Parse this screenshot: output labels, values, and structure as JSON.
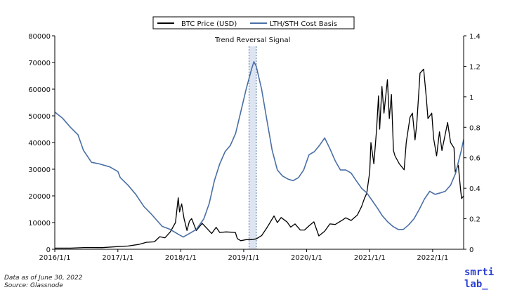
{
  "colors": {
    "btc": "#000000",
    "basis": "#4a6fa5",
    "signal_fill": "#c7d3ea",
    "signal_line": "#4a6fa5"
  },
  "footnote": {
    "date_line": "Data as of June 30, 2022",
    "source_line": "Source: Glassnode"
  },
  "logo": {
    "line1": "smrti",
    "line2": "lab_"
  },
  "chart_data": {
    "type": "line",
    "title": "",
    "xlabel": "",
    "ylabel": "",
    "x_ticks": [
      "2016/1/1",
      "2017/1/1",
      "2018/1/1",
      "2019/1/1",
      "2020/1/1",
      "2021/1/1",
      "2022/1/1"
    ],
    "x_range": [
      "2016-01-01",
      "2022-06-30"
    ],
    "ylim_left": [
      0,
      80000
    ],
    "yticks_left": [
      "0",
      "10000",
      "20000",
      "30000",
      "40000",
      "50000",
      "60000",
      "70000",
      "80000"
    ],
    "ylim_right": [
      0,
      1.4
    ],
    "yticks_right": [
      "0",
      "0.2",
      "0.4",
      "0.6",
      "0.8",
      "1",
      "1.2",
      "1.4"
    ],
    "grid": false,
    "legend_position": "top-center",
    "annotation": {
      "text": "Trend Reversal Signal",
      "x_start": "2019-02-01",
      "x_end": "2019-03-15"
    },
    "series": [
      {
        "name": "BTC Price (USD)",
        "axis": "left",
        "points": [
          [
            "2016-01-01",
            430
          ],
          [
            "2016-04-01",
            420
          ],
          [
            "2016-07-01",
            670
          ],
          [
            "2016-10-01",
            610
          ],
          [
            "2017-01-01",
            1000
          ],
          [
            "2017-03-01",
            1200
          ],
          [
            "2017-05-01",
            1800
          ],
          [
            "2017-06-15",
            2600
          ],
          [
            "2017-08-01",
            2800
          ],
          [
            "2017-09-01",
            4700
          ],
          [
            "2017-10-01",
            4300
          ],
          [
            "2017-11-01",
            6500
          ],
          [
            "2017-12-01",
            10000
          ],
          [
            "2017-12-17",
            19300
          ],
          [
            "2017-12-25",
            14000
          ],
          [
            "2018-01-06",
            17000
          ],
          [
            "2018-01-20",
            11500
          ],
          [
            "2018-02-06",
            7000
          ],
          [
            "2018-02-20",
            10500
          ],
          [
            "2018-03-05",
            11500
          ],
          [
            "2018-04-01",
            7000
          ],
          [
            "2018-05-05",
            9700
          ],
          [
            "2018-06-29",
            5900
          ],
          [
            "2018-07-25",
            8200
          ],
          [
            "2018-08-15",
            6300
          ],
          [
            "2018-09-20",
            6500
          ],
          [
            "2018-10-20",
            6400
          ],
          [
            "2018-11-14",
            6300
          ],
          [
            "2018-11-25",
            4000
          ],
          [
            "2018-12-15",
            3200
          ],
          [
            "2019-01-15",
            3600
          ],
          [
            "2019-02-15",
            3600
          ],
          [
            "2019-03-15",
            3900
          ],
          [
            "2019-04-15",
            5100
          ],
          [
            "2019-05-15",
            8000
          ],
          [
            "2019-06-26",
            12500
          ],
          [
            "2019-07-15",
            10000
          ],
          [
            "2019-08-06",
            11900
          ],
          [
            "2019-09-10",
            10200
          ],
          [
            "2019-10-01",
            8300
          ],
          [
            "2019-10-26",
            9500
          ],
          [
            "2019-11-25",
            7200
          ],
          [
            "2019-12-20",
            7200
          ],
          [
            "2020-01-15",
            8800
          ],
          [
            "2020-02-12",
            10300
          ],
          [
            "2020-03-12",
            5000
          ],
          [
            "2020-04-15",
            6800
          ],
          [
            "2020-05-15",
            9500
          ],
          [
            "2020-06-15",
            9300
          ],
          [
            "2020-07-28",
            11000
          ],
          [
            "2020-08-15",
            11800
          ],
          [
            "2020-09-15",
            10800
          ],
          [
            "2020-10-21",
            12800
          ],
          [
            "2020-11-15",
            16000
          ],
          [
            "2020-12-01",
            19000
          ],
          [
            "2020-12-15",
            21000
          ],
          [
            "2021-01-01",
            29000
          ],
          [
            "2021-01-08",
            40000
          ],
          [
            "2021-01-25",
            32000
          ],
          [
            "2021-02-10",
            45000
          ],
          [
            "2021-02-21",
            57500
          ],
          [
            "2021-02-28",
            45000
          ],
          [
            "2021-03-13",
            61000
          ],
          [
            "2021-03-25",
            51000
          ],
          [
            "2021-04-14",
            63500
          ],
          [
            "2021-04-25",
            49000
          ],
          [
            "2021-05-07",
            58000
          ],
          [
            "2021-05-19",
            37000
          ],
          [
            "2021-05-28",
            35000
          ],
          [
            "2021-06-22",
            32000
          ],
          [
            "2021-07-20",
            29800
          ],
          [
            "2021-08-01",
            40000
          ],
          [
            "2021-08-23",
            49500
          ],
          [
            "2021-09-06",
            51000
          ],
          [
            "2021-09-21",
            41000
          ],
          [
            "2021-10-01",
            47000
          ],
          [
            "2021-10-20",
            66000
          ],
          [
            "2021-11-10",
            67500
          ],
          [
            "2021-11-25",
            57000
          ],
          [
            "2021-12-05",
            49000
          ],
          [
            "2021-12-27",
            51000
          ],
          [
            "2022-01-07",
            41500
          ],
          [
            "2022-01-24",
            35000
          ],
          [
            "2022-02-10",
            44000
          ],
          [
            "2022-02-24",
            37000
          ],
          [
            "2022-03-29",
            47500
          ],
          [
            "2022-04-15",
            40000
          ],
          [
            "2022-05-05",
            38000
          ],
          [
            "2022-05-12",
            29000
          ],
          [
            "2022-05-30",
            31500
          ],
          [
            "2022-06-13",
            22000
          ],
          [
            "2022-06-18",
            19000
          ],
          [
            "2022-06-30",
            20000
          ]
        ]
      },
      {
        "name": "LTH/STH Cost Basis",
        "axis": "right",
        "points": [
          [
            "2016-01-01",
            0.9
          ],
          [
            "2016-02-15",
            0.86
          ],
          [
            "2016-04-01",
            0.8
          ],
          [
            "2016-05-15",
            0.75
          ],
          [
            "2016-06-15",
            0.65
          ],
          [
            "2016-08-01",
            0.57
          ],
          [
            "2016-09-15",
            0.56
          ],
          [
            "2016-11-15",
            0.54
          ],
          [
            "2017-01-01",
            0.51
          ],
          [
            "2017-01-15",
            0.47
          ],
          [
            "2017-03-01",
            0.42
          ],
          [
            "2017-04-15",
            0.36
          ],
          [
            "2017-06-01",
            0.28
          ],
          [
            "2017-07-15",
            0.23
          ],
          [
            "2017-09-15",
            0.15
          ],
          [
            "2017-11-01",
            0.13
          ],
          [
            "2017-12-15",
            0.1
          ],
          [
            "2018-01-15",
            0.08
          ],
          [
            "2018-02-15",
            0.1
          ],
          [
            "2018-04-01",
            0.13
          ],
          [
            "2018-05-15",
            0.2
          ],
          [
            "2018-06-15",
            0.3
          ],
          [
            "2018-07-15",
            0.45
          ],
          [
            "2018-08-15",
            0.56
          ],
          [
            "2018-09-15",
            0.64
          ],
          [
            "2018-10-15",
            0.68
          ],
          [
            "2018-11-15",
            0.76
          ],
          [
            "2018-12-15",
            0.9
          ],
          [
            "2019-01-15",
            1.05
          ],
          [
            "2019-02-15",
            1.18
          ],
          [
            "2019-03-01",
            1.23
          ],
          [
            "2019-03-15",
            1.2
          ],
          [
            "2019-04-15",
            1.05
          ],
          [
            "2019-05-15",
            0.85
          ],
          [
            "2019-06-15",
            0.65
          ],
          [
            "2019-07-15",
            0.52
          ],
          [
            "2019-08-15",
            0.48
          ],
          [
            "2019-09-15",
            0.46
          ],
          [
            "2019-10-15",
            0.45
          ],
          [
            "2019-11-15",
            0.47
          ],
          [
            "2019-12-15",
            0.52
          ],
          [
            "2020-01-15",
            0.62
          ],
          [
            "2020-02-15",
            0.64
          ],
          [
            "2020-03-15",
            0.68
          ],
          [
            "2020-04-15",
            0.73
          ],
          [
            "2020-05-15",
            0.66
          ],
          [
            "2020-06-15",
            0.58
          ],
          [
            "2020-07-15",
            0.52
          ],
          [
            "2020-08-15",
            0.52
          ],
          [
            "2020-09-15",
            0.5
          ],
          [
            "2020-10-15",
            0.45
          ],
          [
            "2020-11-15",
            0.4
          ],
          [
            "2020-12-15",
            0.37
          ],
          [
            "2021-01-15",
            0.32
          ],
          [
            "2021-02-15",
            0.27
          ],
          [
            "2021-03-15",
            0.22
          ],
          [
            "2021-04-15",
            0.18
          ],
          [
            "2021-05-15",
            0.15
          ],
          [
            "2021-06-15",
            0.13
          ],
          [
            "2021-07-15",
            0.13
          ],
          [
            "2021-08-15",
            0.16
          ],
          [
            "2021-09-15",
            0.2
          ],
          [
            "2021-10-15",
            0.26
          ],
          [
            "2021-11-15",
            0.33
          ],
          [
            "2021-12-15",
            0.38
          ],
          [
            "2022-01-15",
            0.36
          ],
          [
            "2022-02-15",
            0.37
          ],
          [
            "2022-03-15",
            0.38
          ],
          [
            "2022-04-15",
            0.42
          ],
          [
            "2022-05-15",
            0.5
          ],
          [
            "2022-06-01",
            0.58
          ],
          [
            "2022-06-15",
            0.64
          ],
          [
            "2022-06-30",
            0.72
          ]
        ]
      }
    ]
  }
}
